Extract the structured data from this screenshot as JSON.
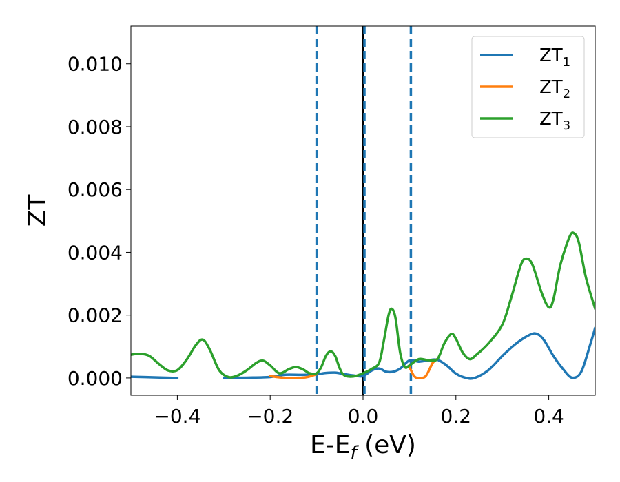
{
  "chart_data": {
    "type": "line",
    "title": "",
    "xlabel_main": "E-E",
    "xlabel_sub": "f",
    "xlabel_unit": " (eV)",
    "ylabel": "ZT",
    "xlim": [
      -0.5,
      0.5
    ],
    "ylim": [
      -0.00055,
      0.0112
    ],
    "xticks": [
      -0.4,
      -0.2,
      0.0,
      0.2,
      0.4
    ],
    "xtick_labels": [
      "−0.4",
      "−0.2",
      "0.0",
      "0.2",
      "0.4"
    ],
    "yticks": [
      0.0,
      0.002,
      0.004,
      0.006,
      0.008,
      0.01
    ],
    "ytick_labels": [
      "0.000",
      "0.002",
      "0.004",
      "0.006",
      "0.008",
      "0.010"
    ],
    "legend_position": "top-right",
    "vertical_lines": [
      {
        "x": -0.1,
        "style": "dashed",
        "color": "#1f77b4"
      },
      {
        "x": 0.0,
        "style": "solid",
        "color": "#000000"
      },
      {
        "x": 0.003,
        "style": "dashed",
        "color": "#1f77b4"
      },
      {
        "x": 0.103,
        "style": "dashed",
        "color": "#1f77b4"
      }
    ],
    "series": [
      {
        "name": "ZT",
        "name_sub": "1",
        "color": "#1f77b4",
        "points": [
          [
            -0.5,
            4e-05
          ],
          [
            -0.45,
            2e-05
          ],
          [
            -0.4,
            0.0
          ],
          [
            -0.3,
            0.0
          ],
          [
            -0.25,
            1e-05
          ],
          [
            -0.2,
            3e-05
          ],
          [
            -0.17,
            0.0001
          ],
          [
            -0.13,
            0.0001
          ],
          [
            -0.1,
            0.00012
          ],
          [
            -0.08,
            0.00016
          ],
          [
            -0.06,
            0.00017
          ],
          [
            -0.04,
            0.00012
          ],
          [
            -0.02,
            8e-05
          ],
          [
            0.0,
            6e-05
          ],
          [
            0.02,
            0.00025
          ],
          [
            0.035,
            0.0003
          ],
          [
            0.05,
            0.0002
          ],
          [
            0.065,
            0.0002
          ],
          [
            0.08,
            0.0003
          ],
          [
            0.1,
            0.00056
          ],
          [
            0.12,
            0.00052
          ],
          [
            0.14,
            0.00056
          ],
          [
            0.16,
            0.00058
          ],
          [
            0.18,
            0.0004
          ],
          [
            0.2,
            0.00014
          ],
          [
            0.22,
            1e-05
          ],
          [
            0.24,
            0.0
          ],
          [
            0.27,
            0.00025
          ],
          [
            0.3,
            0.0007
          ],
          [
            0.33,
            0.0011
          ],
          [
            0.36,
            0.00138
          ],
          [
            0.375,
            0.0014
          ],
          [
            0.39,
            0.0012
          ],
          [
            0.41,
            0.0007
          ],
          [
            0.43,
            0.0003
          ],
          [
            0.45,
            1e-05
          ],
          [
            0.47,
            0.0002
          ],
          [
            0.49,
            0.0011
          ],
          [
            0.5,
            0.0016
          ]
        ]
      },
      {
        "name": "ZT",
        "name_sub": "2",
        "color": "#ff7f0e",
        "points": [
          [
            -0.2,
            6e-05
          ],
          [
            -0.18,
            2e-05
          ],
          [
            -0.16,
            0.0
          ],
          [
            -0.14,
            0.0
          ],
          [
            -0.12,
            3e-05
          ],
          [
            -0.1,
            0.00012
          ],
          [
            0.1,
            0.00035
          ],
          [
            0.11,
            6e-05
          ],
          [
            0.12,
            0.0
          ],
          [
            0.135,
            6e-05
          ],
          [
            0.15,
            0.00048
          ],
          [
            0.16,
            0.0006
          ]
        ]
      },
      {
        "name": "ZT",
        "name_sub": "3",
        "color": "#2ca02c",
        "points": [
          [
            -0.5,
            0.00074
          ],
          [
            -0.48,
            0.00077
          ],
          [
            -0.46,
            0.0007
          ],
          [
            -0.44,
            0.00045
          ],
          [
            -0.42,
            0.00024
          ],
          [
            -0.4,
            0.00025
          ],
          [
            -0.38,
            0.00058
          ],
          [
            -0.36,
            0.00105
          ],
          [
            -0.345,
            0.00122
          ],
          [
            -0.33,
            0.0009
          ],
          [
            -0.31,
            0.00025
          ],
          [
            -0.29,
            3e-05
          ],
          [
            -0.27,
            8e-05
          ],
          [
            -0.25,
            0.00025
          ],
          [
            -0.23,
            0.00048
          ],
          [
            -0.215,
            0.00055
          ],
          [
            -0.2,
            0.0004
          ],
          [
            -0.18,
            0.00015
          ],
          [
            -0.16,
            0.00028
          ],
          [
            -0.145,
            0.00035
          ],
          [
            -0.13,
            0.00028
          ],
          [
            -0.115,
            0.00015
          ],
          [
            -0.1,
            0.00015
          ],
          [
            -0.09,
            0.00035
          ],
          [
            -0.08,
            0.0007
          ],
          [
            -0.07,
            0.00085
          ],
          [
            -0.06,
            0.0007
          ],
          [
            -0.05,
            0.0003
          ],
          [
            -0.04,
            8e-05
          ],
          [
            -0.02,
            5e-05
          ],
          [
            0.0,
            0.00015
          ],
          [
            0.02,
            0.0003
          ],
          [
            0.035,
            0.0005
          ],
          [
            0.045,
            0.0012
          ],
          [
            0.055,
            0.002
          ],
          [
            0.062,
            0.0022
          ],
          [
            0.07,
            0.0019
          ],
          [
            0.08,
            0.0008
          ],
          [
            0.09,
            0.00035
          ],
          [
            0.1,
            0.0004
          ],
          [
            0.12,
            0.0006
          ],
          [
            0.14,
            0.00057
          ],
          [
            0.16,
            0.0006
          ],
          [
            0.175,
            0.0011
          ],
          [
            0.19,
            0.0014
          ],
          [
            0.2,
            0.00125
          ],
          [
            0.215,
            0.0008
          ],
          [
            0.23,
            0.0006
          ],
          [
            0.245,
            0.00075
          ],
          [
            0.27,
            0.0011
          ],
          [
            0.3,
            0.0017
          ],
          [
            0.32,
            0.0026
          ],
          [
            0.34,
            0.0036
          ],
          [
            0.352,
            0.0038
          ],
          [
            0.365,
            0.0036
          ],
          [
            0.385,
            0.0027
          ],
          [
            0.4,
            0.00225
          ],
          [
            0.41,
            0.0025
          ],
          [
            0.425,
            0.0036
          ],
          [
            0.445,
            0.0045
          ],
          [
            0.455,
            0.0046
          ],
          [
            0.465,
            0.0043
          ],
          [
            0.48,
            0.0032
          ],
          [
            0.5,
            0.0022
          ]
        ]
      }
    ]
  }
}
